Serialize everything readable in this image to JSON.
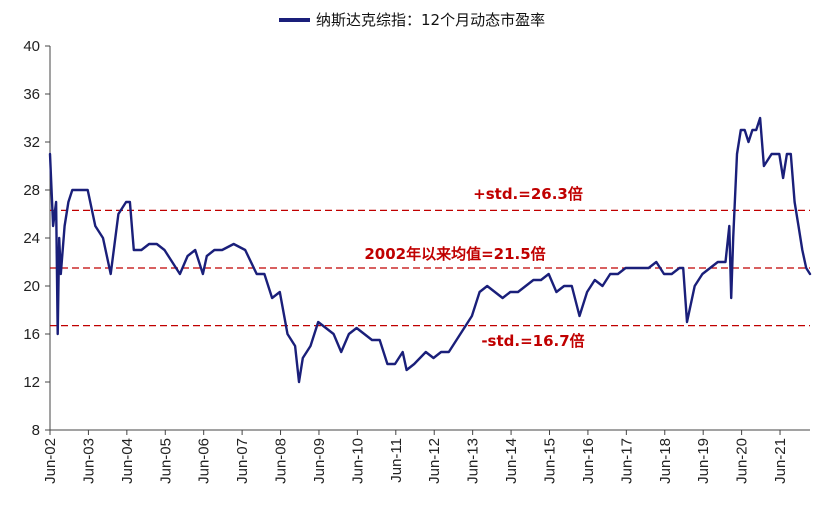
{
  "chart_data": {
    "type": "line",
    "title": "",
    "xlabel": "",
    "ylabel": "",
    "legend": {
      "position": "top-center",
      "label": "纳斯达克综指：12个月动态市盈率",
      "color": "#1a1f7a"
    },
    "ylim": [
      8,
      40
    ],
    "yticks": [
      8,
      12,
      16,
      20,
      24,
      28,
      32,
      36,
      40
    ],
    "x_start": 2002.42,
    "x_end": 2022.2,
    "xtick_labels": [
      "Jun-02",
      "Jun-03",
      "Jun-04",
      "Jun-05",
      "Jun-06",
      "Jun-07",
      "Jun-08",
      "Jun-09",
      "Jun-10",
      "Jun-11",
      "Jun-12",
      "Jun-13",
      "Jun-14",
      "Jun-15",
      "Jun-16",
      "Jun-17",
      "Jun-18",
      "Jun-19",
      "Jun-20",
      "Jun-21"
    ],
    "series": [
      {
        "name": "纳斯达克综指：12个月动态市盈率",
        "color": "#1a1f7a",
        "x": [
          2002.42,
          2002.5,
          2002.58,
          2002.62,
          2002.66,
          2002.7,
          2002.8,
          2002.9,
          2003.0,
          2003.2,
          2003.4,
          2003.6,
          2003.8,
          2004.0,
          2004.2,
          2004.4,
          2004.5,
          2004.6,
          2004.8,
          2005.0,
          2005.2,
          2005.4,
          2005.6,
          2005.8,
          2006.0,
          2006.2,
          2006.4,
          2006.5,
          2006.7,
          2006.9,
          2007.2,
          2007.5,
          2007.8,
          2008.0,
          2008.2,
          2008.4,
          2008.6,
          2008.8,
          2008.9,
          2009.0,
          2009.2,
          2009.4,
          2009.6,
          2009.8,
          2010.0,
          2010.2,
          2010.4,
          2010.6,
          2010.8,
          2011.0,
          2011.2,
          2011.4,
          2011.6,
          2011.7,
          2011.9,
          2012.2,
          2012.4,
          2012.6,
          2012.8,
          2013.0,
          2013.2,
          2013.4,
          2013.6,
          2013.8,
          2014.0,
          2014.2,
          2014.4,
          2014.6,
          2014.8,
          2015.0,
          2015.2,
          2015.4,
          2015.6,
          2015.8,
          2016.0,
          2016.2,
          2016.4,
          2016.6,
          2016.8,
          2017.0,
          2017.2,
          2017.4,
          2017.6,
          2017.8,
          2018.0,
          2018.2,
          2018.4,
          2018.6,
          2018.8,
          2018.9,
          2019.0,
          2019.2,
          2019.4,
          2019.6,
          2019.8,
          2020.0,
          2020.1,
          2020.15,
          2020.2,
          2020.3,
          2020.4,
          2020.5,
          2020.6,
          2020.7,
          2020.8,
          2020.9,
          2021.0,
          2021.2,
          2021.4,
          2021.5,
          2021.6,
          2021.7,
          2021.8,
          2021.9,
          2022.0,
          2022.1,
          2022.2
        ],
        "values": [
          31,
          25,
          27,
          16,
          24,
          21,
          25,
          27,
          28,
          28,
          28,
          25,
          24,
          21,
          26,
          27,
          27,
          23,
          23,
          23.5,
          23.5,
          23,
          22,
          21,
          22.5,
          23,
          21,
          22.5,
          23,
          23,
          23.5,
          23,
          21,
          21,
          19,
          19.5,
          16,
          15,
          12,
          14,
          15,
          17,
          16.5,
          16,
          14.5,
          16,
          16.5,
          16,
          15.5,
          15.5,
          13.5,
          13.5,
          14.5,
          13,
          13.5,
          14.5,
          14,
          14.5,
          14.5,
          15.5,
          16.5,
          17.5,
          19.5,
          20,
          19.5,
          19,
          19.5,
          19.5,
          20,
          20.5,
          20.5,
          21,
          19.5,
          20,
          20,
          17.5,
          19.5,
          20.5,
          20,
          21,
          21,
          21.5,
          21.5,
          21.5,
          21.5,
          22,
          21,
          21,
          21.5,
          21.5,
          17,
          20,
          21,
          21.5,
          22,
          22,
          25,
          19,
          24,
          31,
          33,
          33,
          32,
          33,
          33,
          34,
          30,
          31,
          31,
          29,
          31,
          31,
          27,
          25,
          23,
          21.5,
          21
        ]
      }
    ],
    "reference_lines": [
      {
        "value": 26.3,
        "label": "+std.=26.3倍",
        "color": "#c00000"
      },
      {
        "value": 21.5,
        "label": "2002年以来均值=21.5倍",
        "color": "#c00000"
      },
      {
        "value": 16.7,
        "label": "-std.=16.7倍",
        "color": "#c00000"
      }
    ]
  }
}
